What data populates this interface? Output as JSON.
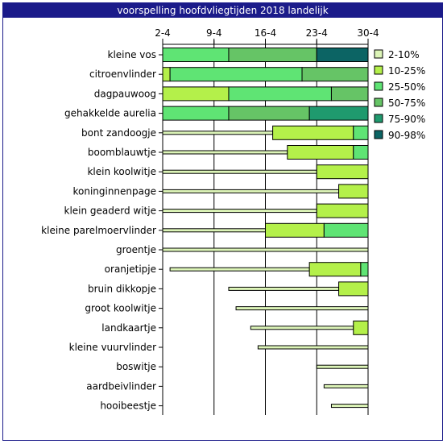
{
  "window": {
    "title": "voorspelling hoofdvliegtijden 2018 landelijk"
  },
  "chart_data": {
    "type": "bar",
    "subtype": "horizontal stacked range (flight period per butterfly species)",
    "title": "voorspelling hoofdvliegtijden 2018 landelijk",
    "x_ticks": [
      "2-4",
      "9-4",
      "16-4",
      "23-4",
      "30-4"
    ],
    "x_range": [
      "2-4",
      "30-4"
    ],
    "grid": "vertical lines at x ticks",
    "legend_position": "right",
    "bands": [
      "2-10%",
      "10-25%",
      "25-50%",
      "50-75%",
      "75-90%",
      "90-98%"
    ],
    "colors": {
      "2-10%": "#ddf5b8",
      "10-25%": "#b4f04a",
      "25-50%": "#5fe474",
      "50-75%": "#66c466",
      "75-90%": "#1f9a6e",
      "90-98%": "#0c6464"
    },
    "day_unit": "day of April",
    "species": [
      {
        "name": "kleine vos",
        "segments": [
          [
            2,
            11,
            "25-50%"
          ],
          [
            11,
            23,
            "50-75%"
          ],
          [
            23,
            30,
            "90-98%"
          ]
        ]
      },
      {
        "name": "citroenvlinder",
        "segments": [
          [
            2,
            3,
            "10-25%"
          ],
          [
            3,
            21,
            "25-50%"
          ],
          [
            21,
            30,
            "50-75%"
          ]
        ]
      },
      {
        "name": "dagpauwoog",
        "segments": [
          [
            2,
            11,
            "10-25%"
          ],
          [
            11,
            25,
            "25-50%"
          ],
          [
            25,
            30,
            "50-75%"
          ]
        ]
      },
      {
        "name": "gehakkelde aurelia",
        "segments": [
          [
            2,
            11,
            "25-50%"
          ],
          [
            11,
            22,
            "50-75%"
          ],
          [
            22,
            30,
            "75-90%"
          ]
        ]
      },
      {
        "name": "bont zandoogje",
        "segments": [
          [
            2,
            17,
            "2-10%"
          ],
          [
            17,
            28,
            "10-25%"
          ],
          [
            28,
            30,
            "25-50%"
          ]
        ]
      },
      {
        "name": "boomblauwtje",
        "segments": [
          [
            2,
            19,
            "2-10%"
          ],
          [
            19,
            28,
            "10-25%"
          ],
          [
            28,
            30,
            "25-50%"
          ]
        ]
      },
      {
        "name": "klein koolwitje",
        "segments": [
          [
            2,
            23,
            "2-10%"
          ],
          [
            23,
            30,
            "10-25%"
          ]
        ]
      },
      {
        "name": "koninginnenpage",
        "segments": [
          [
            2,
            26,
            "2-10%"
          ],
          [
            26,
            30,
            "10-25%"
          ]
        ]
      },
      {
        "name": "klein geaderd witje",
        "segments": [
          [
            2,
            23,
            "2-10%"
          ],
          [
            23,
            30,
            "10-25%"
          ]
        ]
      },
      {
        "name": "kleine parelmoervlinder",
        "segments": [
          [
            2,
            16,
            "2-10%"
          ],
          [
            16,
            24,
            "10-25%"
          ],
          [
            24,
            30,
            "25-50%"
          ]
        ]
      },
      {
        "name": "groentje",
        "segments": [
          [
            2,
            30,
            "2-10%"
          ]
        ]
      },
      {
        "name": "oranjetipje",
        "segments": [
          [
            3,
            22,
            "2-10%"
          ],
          [
            22,
            29,
            "10-25%"
          ],
          [
            29,
            30,
            "25-50%"
          ]
        ]
      },
      {
        "name": "bruin dikkopje",
        "segments": [
          [
            11,
            26,
            "2-10%"
          ],
          [
            26,
            30,
            "10-25%"
          ]
        ]
      },
      {
        "name": "groot koolwitje",
        "segments": [
          [
            12,
            30,
            "2-10%"
          ]
        ]
      },
      {
        "name": "landkaartje",
        "segments": [
          [
            14,
            28,
            "2-10%"
          ],
          [
            28,
            30,
            "10-25%"
          ]
        ]
      },
      {
        "name": "kleine vuurvlinder",
        "segments": [
          [
            15,
            30,
            "2-10%"
          ]
        ]
      },
      {
        "name": "boswitje",
        "segments": [
          [
            23,
            30,
            "2-10%"
          ]
        ]
      },
      {
        "name": "aardbeivlinder",
        "segments": [
          [
            24,
            30,
            "2-10%"
          ]
        ]
      },
      {
        "name": "hooibeestje",
        "segments": [
          [
            25,
            30,
            "2-10%"
          ]
        ]
      }
    ]
  }
}
